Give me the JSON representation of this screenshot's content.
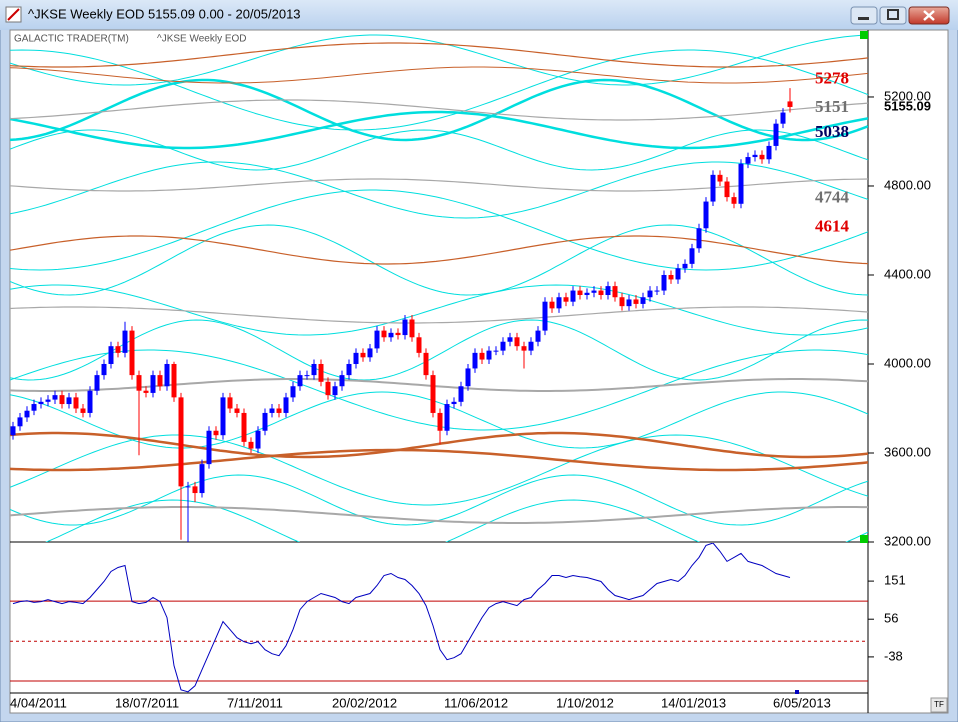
{
  "window": {
    "title": "^JKSE Weekly EOD  5155.09   0.00 - 20/05/2013"
  },
  "chart_data": {
    "type": "candlestick",
    "legend": [
      "GALACTIC TRADER(TM)",
      "^JKSE Weekly EOD"
    ],
    "categories": [
      "4/04/2011",
      null,
      null,
      null,
      null,
      null,
      null,
      null,
      null,
      null,
      null,
      null,
      null,
      null,
      null,
      "18/07/2011",
      null,
      null,
      null,
      null,
      null,
      null,
      null,
      null,
      null,
      null,
      null,
      null,
      null,
      null,
      null,
      "7/11/2011",
      null,
      null,
      null,
      null,
      null,
      null,
      null,
      null,
      null,
      null,
      null,
      null,
      null,
      null,
      "20/02/2012",
      null,
      null,
      null,
      null,
      null,
      null,
      null,
      null,
      null,
      null,
      null,
      null,
      null,
      null,
      null,
      "11/06/2012",
      null,
      null,
      null,
      null,
      null,
      null,
      null,
      null,
      null,
      null,
      null,
      null,
      null,
      null,
      null,
      "1/10/2012",
      null,
      null,
      null,
      null,
      null,
      null,
      null,
      null,
      null,
      null,
      null,
      null,
      null,
      null,
      "14/01/2013",
      null,
      null,
      null,
      null,
      null,
      null,
      null,
      null,
      null,
      null,
      null,
      null,
      null,
      null,
      null,
      "6/05/2013",
      null,
      null
    ],
    "open": [
      3680,
      3720,
      3760,
      3790,
      3820,
      3830,
      3840,
      3860,
      3820,
      3850,
      3800,
      3780,
      3880,
      3950,
      4000,
      4080,
      4050,
      4150,
      3950,
      3880,
      3870,
      3950,
      3900,
      4000,
      3850,
      3450,
      3450,
      3420,
      3550,
      3700,
      3680,
      3850,
      3800,
      3780,
      3650,
      3620,
      3700,
      3780,
      3800,
      3780,
      3850,
      3900,
      3950,
      3950,
      4000,
      3920,
      3860,
      3900,
      3950,
      4000,
      4050,
      4030,
      4070,
      4150,
      4120,
      4140,
      4130,
      4200,
      4120,
      4050,
      3950,
      3780,
      3700,
      3820,
      3830,
      3900,
      3980,
      4050,
      4020,
      4060,
      4060,
      4100,
      4120,
      4080,
      4060,
      4100,
      4150,
      4280,
      4250,
      4300,
      4280,
      4330,
      4310,
      4320,
      4330,
      4310,
      4350,
      4300,
      4260,
      4290,
      4270,
      4300,
      4330,
      4330,
      4400,
      4380,
      4430,
      4450,
      4520,
      4610,
      4730,
      4850,
      4820,
      4750,
      4720,
      4900,
      4930,
      4940,
      4920,
      4980,
      5080,
      5180
    ],
    "high": [
      3740,
      3780,
      3810,
      3840,
      3850,
      3860,
      3880,
      3880,
      3870,
      3870,
      3820,
      3900,
      3970,
      4020,
      4100,
      4100,
      4190,
      4170,
      3970,
      3900,
      3970,
      3970,
      4020,
      4010,
      3870,
      3470,
      3470,
      3570,
      3720,
      3720,
      3870,
      3870,
      3820,
      3800,
      3670,
      3720,
      3800,
      3820,
      3820,
      3870,
      3920,
      3970,
      3970,
      4020,
      4020,
      3940,
      3920,
      3970,
      4020,
      4070,
      4070,
      4090,
      4170,
      4170,
      4160,
      4160,
      4220,
      4220,
      4140,
      4070,
      3970,
      3800,
      3840,
      3850,
      3920,
      4000,
      4070,
      4070,
      4080,
      4080,
      4120,
      4140,
      4140,
      4100,
      4120,
      4170,
      4300,
      4300,
      4320,
      4320,
      4350,
      4350,
      4340,
      4350,
      4350,
      4370,
      4370,
      4320,
      4310,
      4310,
      4320,
      4350,
      4350,
      4420,
      4420,
      4450,
      4470,
      4540,
      4630,
      4750,
      4870,
      4870,
      4840,
      4770,
      4920,
      4950,
      4960,
      4960,
      5000,
      5100,
      5150,
      5240
    ],
    "low": [
      3660,
      3700,
      3740,
      3770,
      3800,
      3810,
      3820,
      3800,
      3800,
      3780,
      3760,
      3760,
      3860,
      3930,
      3980,
      4030,
      4030,
      3930,
      3590,
      3850,
      3850,
      3880,
      3880,
      3830,
      3210,
      3200,
      3380,
      3400,
      3530,
      3660,
      3660,
      3780,
      3760,
      3630,
      3600,
      3600,
      3680,
      3760,
      3760,
      3760,
      3830,
      3880,
      3930,
      3930,
      3900,
      3840,
      3840,
      3880,
      3930,
      3980,
      4010,
      4010,
      4050,
      4100,
      4100,
      4110,
      4110,
      4100,
      4030,
      3930,
      3760,
      3640,
      3680,
      3800,
      3810,
      3880,
      3960,
      4000,
      4000,
      4040,
      4040,
      4080,
      4060,
      3980,
      4040,
      4080,
      4130,
      4230,
      4230,
      4260,
      4260,
      4290,
      4290,
      4300,
      4290,
      4290,
      4280,
      4240,
      4240,
      4250,
      4250,
      4280,
      4310,
      4310,
      4360,
      4360,
      4410,
      4430,
      4500,
      4590,
      4710,
      4800,
      4730,
      4700,
      4700,
      4880,
      4910,
      4900,
      4900,
      4960,
      5060,
      5130
    ],
    "close": [
      3720,
      3760,
      3790,
      3820,
      3830,
      3840,
      3860,
      3820,
      3850,
      3800,
      3780,
      3880,
      3950,
      4000,
      4080,
      4050,
      4150,
      3950,
      3880,
      3870,
      3950,
      3900,
      4000,
      3850,
      3450,
      3450,
      3420,
      3550,
      3700,
      3680,
      3850,
      3800,
      3780,
      3650,
      3620,
      3700,
      3780,
      3800,
      3780,
      3850,
      3900,
      3950,
      3950,
      4000,
      3920,
      3860,
      3900,
      3950,
      4000,
      4050,
      4030,
      4070,
      4150,
      4120,
      4140,
      4130,
      4200,
      4120,
      4050,
      3950,
      3780,
      3700,
      3820,
      3830,
      3900,
      3980,
      4050,
      4020,
      4060,
      4060,
      4100,
      4120,
      4080,
      4060,
      4100,
      4150,
      4280,
      4250,
      4300,
      4280,
      4330,
      4310,
      4320,
      4330,
      4310,
      4350,
      4300,
      4260,
      4290,
      4270,
      4300,
      4330,
      4330,
      4400,
      4380,
      4430,
      4450,
      4520,
      4610,
      4730,
      4850,
      4820,
      4750,
      4720,
      4900,
      4930,
      4940,
      4920,
      4980,
      5080,
      5130,
      5155.09
    ],
    "up_color": "#0000ff",
    "down_color": "#ff0000",
    "ylim": [
      3200,
      5501
    ],
    "yticks": [
      {
        "value": 3200,
        "label": "3200.00"
      },
      {
        "value": 3600,
        "label": "3600.00"
      },
      {
        "value": 4000,
        "label": "4000.00"
      },
      {
        "value": 4400,
        "label": "4400.00"
      },
      {
        "value": 4800,
        "label": "4800.00"
      },
      {
        "value": 5200,
        "label": "5200.00"
      }
    ],
    "levels": [
      {
        "value": 5278,
        "color": "#e00000"
      },
      {
        "value": 5151,
        "color": "#707070"
      },
      {
        "value": 5038,
        "color": "#000060"
      },
      {
        "value": 4744,
        "color": "#707070"
      },
      {
        "value": 4614,
        "color": "#e00000"
      }
    ],
    "oscillator": {
      "color": "#0000c0",
      "ylim": [
        -128,
        246
      ],
      "yticks": [
        151,
        56,
        -38
      ],
      "hlines": [
        {
          "value": 101,
          "color": "#c00000",
          "style": "solid"
        },
        {
          "value": 1,
          "color": "#c00000",
          "style": "dashed"
        },
        {
          "value": -98,
          "color": "#c00000",
          "style": "solid"
        }
      ],
      "values": [
        95,
        100,
        102,
        98,
        100,
        105,
        100,
        95,
        100,
        98,
        95,
        110,
        130,
        150,
        175,
        185,
        190,
        100,
        95,
        98,
        110,
        100,
        60,
        -60,
        -120,
        -125,
        -110,
        -70,
        -30,
        10,
        50,
        30,
        10,
        0,
        -5,
        0,
        -20,
        -30,
        -35,
        -10,
        30,
        80,
        100,
        110,
        120,
        115,
        110,
        100,
        95,
        110,
        115,
        120,
        140,
        165,
        170,
        160,
        155,
        140,
        120,
        90,
        40,
        -20,
        -45,
        -40,
        -30,
        0,
        30,
        60,
        85,
        95,
        100,
        95,
        90,
        105,
        110,
        130,
        145,
        165,
        165,
        160,
        165,
        162,
        160,
        155,
        150,
        130,
        115,
        110,
        105,
        110,
        115,
        130,
        145,
        150,
        155,
        150,
        165,
        190,
        210,
        240,
        246,
        225,
        200,
        210,
        220,
        200,
        195,
        190,
        180,
        170,
        165,
        160
      ]
    }
  }
}
